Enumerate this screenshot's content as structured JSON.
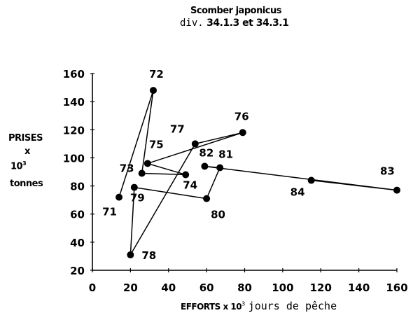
{
  "chart_data": {
    "type": "scatter",
    "title": "Scomber japonicus",
    "subtitle": "div. 34.1.3 et 34.3.1",
    "subtitle_prefix": "div.",
    "subtitle_divisions": "34.1.3 et 34.3.1",
    "xlabel": "EFFORTS x 10³ jours de pêche",
    "xlabel_bold": "EFFORTS x 10",
    "xlabel_sup": "3",
    "xlabel_rest": "jours de pêche",
    "ylabel": "PRISES x 10³ tonnes",
    "ylabel_lines": [
      "PRISES",
      "x",
      "10",
      "tonnes"
    ],
    "ylabel_sup": "3",
    "xlim": [
      0,
      160
    ],
    "ylim": [
      20,
      160
    ],
    "x_ticks": [
      0,
      20,
      40,
      60,
      80,
      100,
      120,
      140,
      160
    ],
    "y_ticks": [
      20,
      40,
      60,
      80,
      100,
      120,
      140,
      160
    ],
    "grid": false,
    "connected": true,
    "points": [
      {
        "label": "71",
        "x": 14,
        "y": 72
      },
      {
        "label": "72",
        "x": 32,
        "y": 148
      },
      {
        "label": "73",
        "x": 26,
        "y": 89
      },
      {
        "label": "74",
        "x": 49,
        "y": 88
      },
      {
        "label": "75",
        "x": 29,
        "y": 96
      },
      {
        "label": "76",
        "x": 79,
        "y": 118
      },
      {
        "label": "77",
        "x": 54,
        "y": 110
      },
      {
        "label": "78",
        "x": 20,
        "y": 31
      },
      {
        "label": "79",
        "x": 22,
        "y": 79
      },
      {
        "label": "80",
        "x": 60,
        "y": 71
      },
      {
        "label": "81",
        "x": 67,
        "y": 93
      },
      {
        "label": "82",
        "x": 59,
        "y": 94
      },
      {
        "label": "83",
        "x": 160,
        "y": 77
      },
      {
        "label": "84",
        "x": 115,
        "y": 84
      }
    ],
    "label_offsets": {
      "71": [
        -24,
        26
      ],
      "72": [
        -6,
        -18
      ],
      "73": [
        -32,
        -2
      ],
      "74": [
        -4,
        20
      ],
      "75": [
        2,
        -22
      ],
      "76": [
        -12,
        -18
      ],
      "77": [
        -36,
        -16
      ],
      "78": [
        16,
        6
      ],
      "79": [
        -6,
        20
      ],
      "80": [
        6,
        28
      ],
      "81": [
        -2,
        -14
      ],
      "82": [
        -8,
        -14
      ],
      "83": [
        -24,
        -22
      ],
      "84": [
        -30,
        22
      ]
    }
  }
}
